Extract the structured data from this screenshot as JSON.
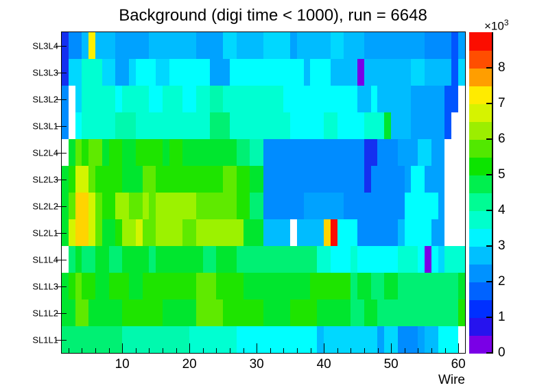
{
  "title": "Background (digi time < 1000), run = 6648",
  "chart_data": {
    "type": "heatmap",
    "title": "Background (digi time < 1000), run = 6648",
    "xlabel": "Wire",
    "x_range": [
      1,
      61
    ],
    "x_ticks": [
      10,
      20,
      30,
      40,
      50,
      60
    ],
    "x_minor_tick_step": 2,
    "rows_top_to_bottom": [
      "SL3L4",
      "SL3L3",
      "SL3L2",
      "SL3L1",
      "SL2L4",
      "SL2L3",
      "SL2L2",
      "SL2L1",
      "SL1L4",
      "SL1L3",
      "SL1L2",
      "SL1L1"
    ],
    "z_scale": {
      "label_base": "×10",
      "label_exponent": "3",
      "min": 0,
      "max": 9,
      "ticks": [
        0,
        1,
        2,
        3,
        4,
        5,
        6,
        7,
        8
      ],
      "legend_position": "right"
    },
    "colorbar_bands_bottom_to_top": [
      "#7A00E6",
      "#2613EE",
      "#0030FF",
      "#0063FF",
      "#0092FF",
      "#00C0FF",
      "#00F4FF",
      "#00FFCC",
      "#00FC94",
      "#00EF4E",
      "#0CE400",
      "#52E800",
      "#9CEE00",
      "#D6F300",
      "#FFEB00",
      "#FF9E00",
      "#FF4E00",
      "#FB0D00"
    ],
    "palette_codes": {
      "W": {
        "color": "#FFFFFF",
        "value_k": 0
      },
      "V": {
        "color": "#7A00E6",
        "value_k": 0.3
      },
      "b": {
        "color": "#1430F0",
        "value_k": 1.2
      },
      "u": {
        "color": "#0055FF",
        "value_k": 1.7
      },
      "d": {
        "color": "#008CFF",
        "value_k": 2.2
      },
      "D": {
        "color": "#00A2FF",
        "value_k": 2.45
      },
      "s": {
        "color": "#00BCFF",
        "value_k": 2.7
      },
      "l": {
        "color": "#00D8FF",
        "value_k": 2.95
      },
      "c": {
        "color": "#00FFFF",
        "value_k": 3.3
      },
      "t": {
        "color": "#00FFD2",
        "value_k": 3.75
      },
      "g": {
        "color": "#00F9AE",
        "value_k": 4.1
      },
      "G": {
        "color": "#00F073",
        "value_k": 4.4
      },
      "e": {
        "color": "#00E62E",
        "value_k": 4.9
      },
      "E": {
        "color": "#1EE400",
        "value_k": 5.3
      },
      "L": {
        "color": "#5FEA00",
        "value_k": 5.7
      },
      "y": {
        "color": "#9CF200",
        "value_k": 6.2
      },
      "Y": {
        "color": "#D4F500",
        "value_k": 6.6
      },
      "x": {
        "color": "#FFF000",
        "value_k": 6.9
      },
      "o": {
        "color": "#FFD400",
        "value_k": 7.2
      },
      "r": {
        "color": "#FB0D00",
        "value_k": 8.7
      }
    },
    "grid_wires_1_to_60": {
      "SL3L4": "bddsxsssDDDDDsssssssDDDDllssssllllDsssssllsssDDDDDDDDDdddduD",
      "SL3L3": "blltttllDDlcccllccccccDDDcccccccccccscccssssVsssssssllssssul",
      "SL3L2": "dWltttttcttttcctttccttggtttttttttcccccccccccsscsssssDDDDDuuW",
      "SL3L1": "dWctttttgggtttttttttttGGGtttttttttcccccttcccctttesssDDDDDuWW",
      "SL2L4": "WeLELLeEEeeEEEEeEEeeeeeeeeGGggdddddddddddddddbbdddDDDllDDWWW",
      "SL2L3": "eEYYLEEEEeeeLLEEEEEEEEEELLEEeedddddddddddddddbdddddDccDDDWWW",
      "SL2L2": "eLooYLEEyyLLyLyyyyyyLLLLLLEEGGddddddDDDDDDdddddddddcccccDWWW",
      "SL2L1": "eYooYLeeEyyYLLyyyyLLyyyyyyyeeessssWssssorcccddddddsccccDDWWW",
      "SL1L4": "WGeGGeeGGeeeeGeeeeeeeGGeeeGGGGGGGGGGGGttccctcccccctttcVclttt",
      "SL1L3": "eELEEeeEEEeeEEEEEEEELLLEEEEeeeeeeeeeeEEEEEEGeeGGeeGGGGGGGGGe",
      "SL1L2": "eeLLeeeeeEEEEEEeeeeeLLLLEEEEEEeeeeEEEEeeeeeGGeeGGGGGGGGGGGGE",
      "SL1L1": "GGGGGGGGGggggggggggtttttttccccccccccccsllllllllDlldddDsscccW"
    },
    "notable_cells": [
      {
        "row": "SL3L4",
        "wire": 5,
        "color": "yellow",
        "approx_value": 6900
      },
      {
        "row": "SL3L3",
        "wire": 45,
        "color": "violet",
        "approx_value": 300
      },
      {
        "row": "SL2L1",
        "wire": 40,
        "color": "gold",
        "approx_value": 7200
      },
      {
        "row": "SL2L1",
        "wire": 41,
        "color": "red",
        "approx_value": 8700
      },
      {
        "row": "SL1L4",
        "wire": 55,
        "color": "violet",
        "approx_value": 300
      }
    ]
  }
}
